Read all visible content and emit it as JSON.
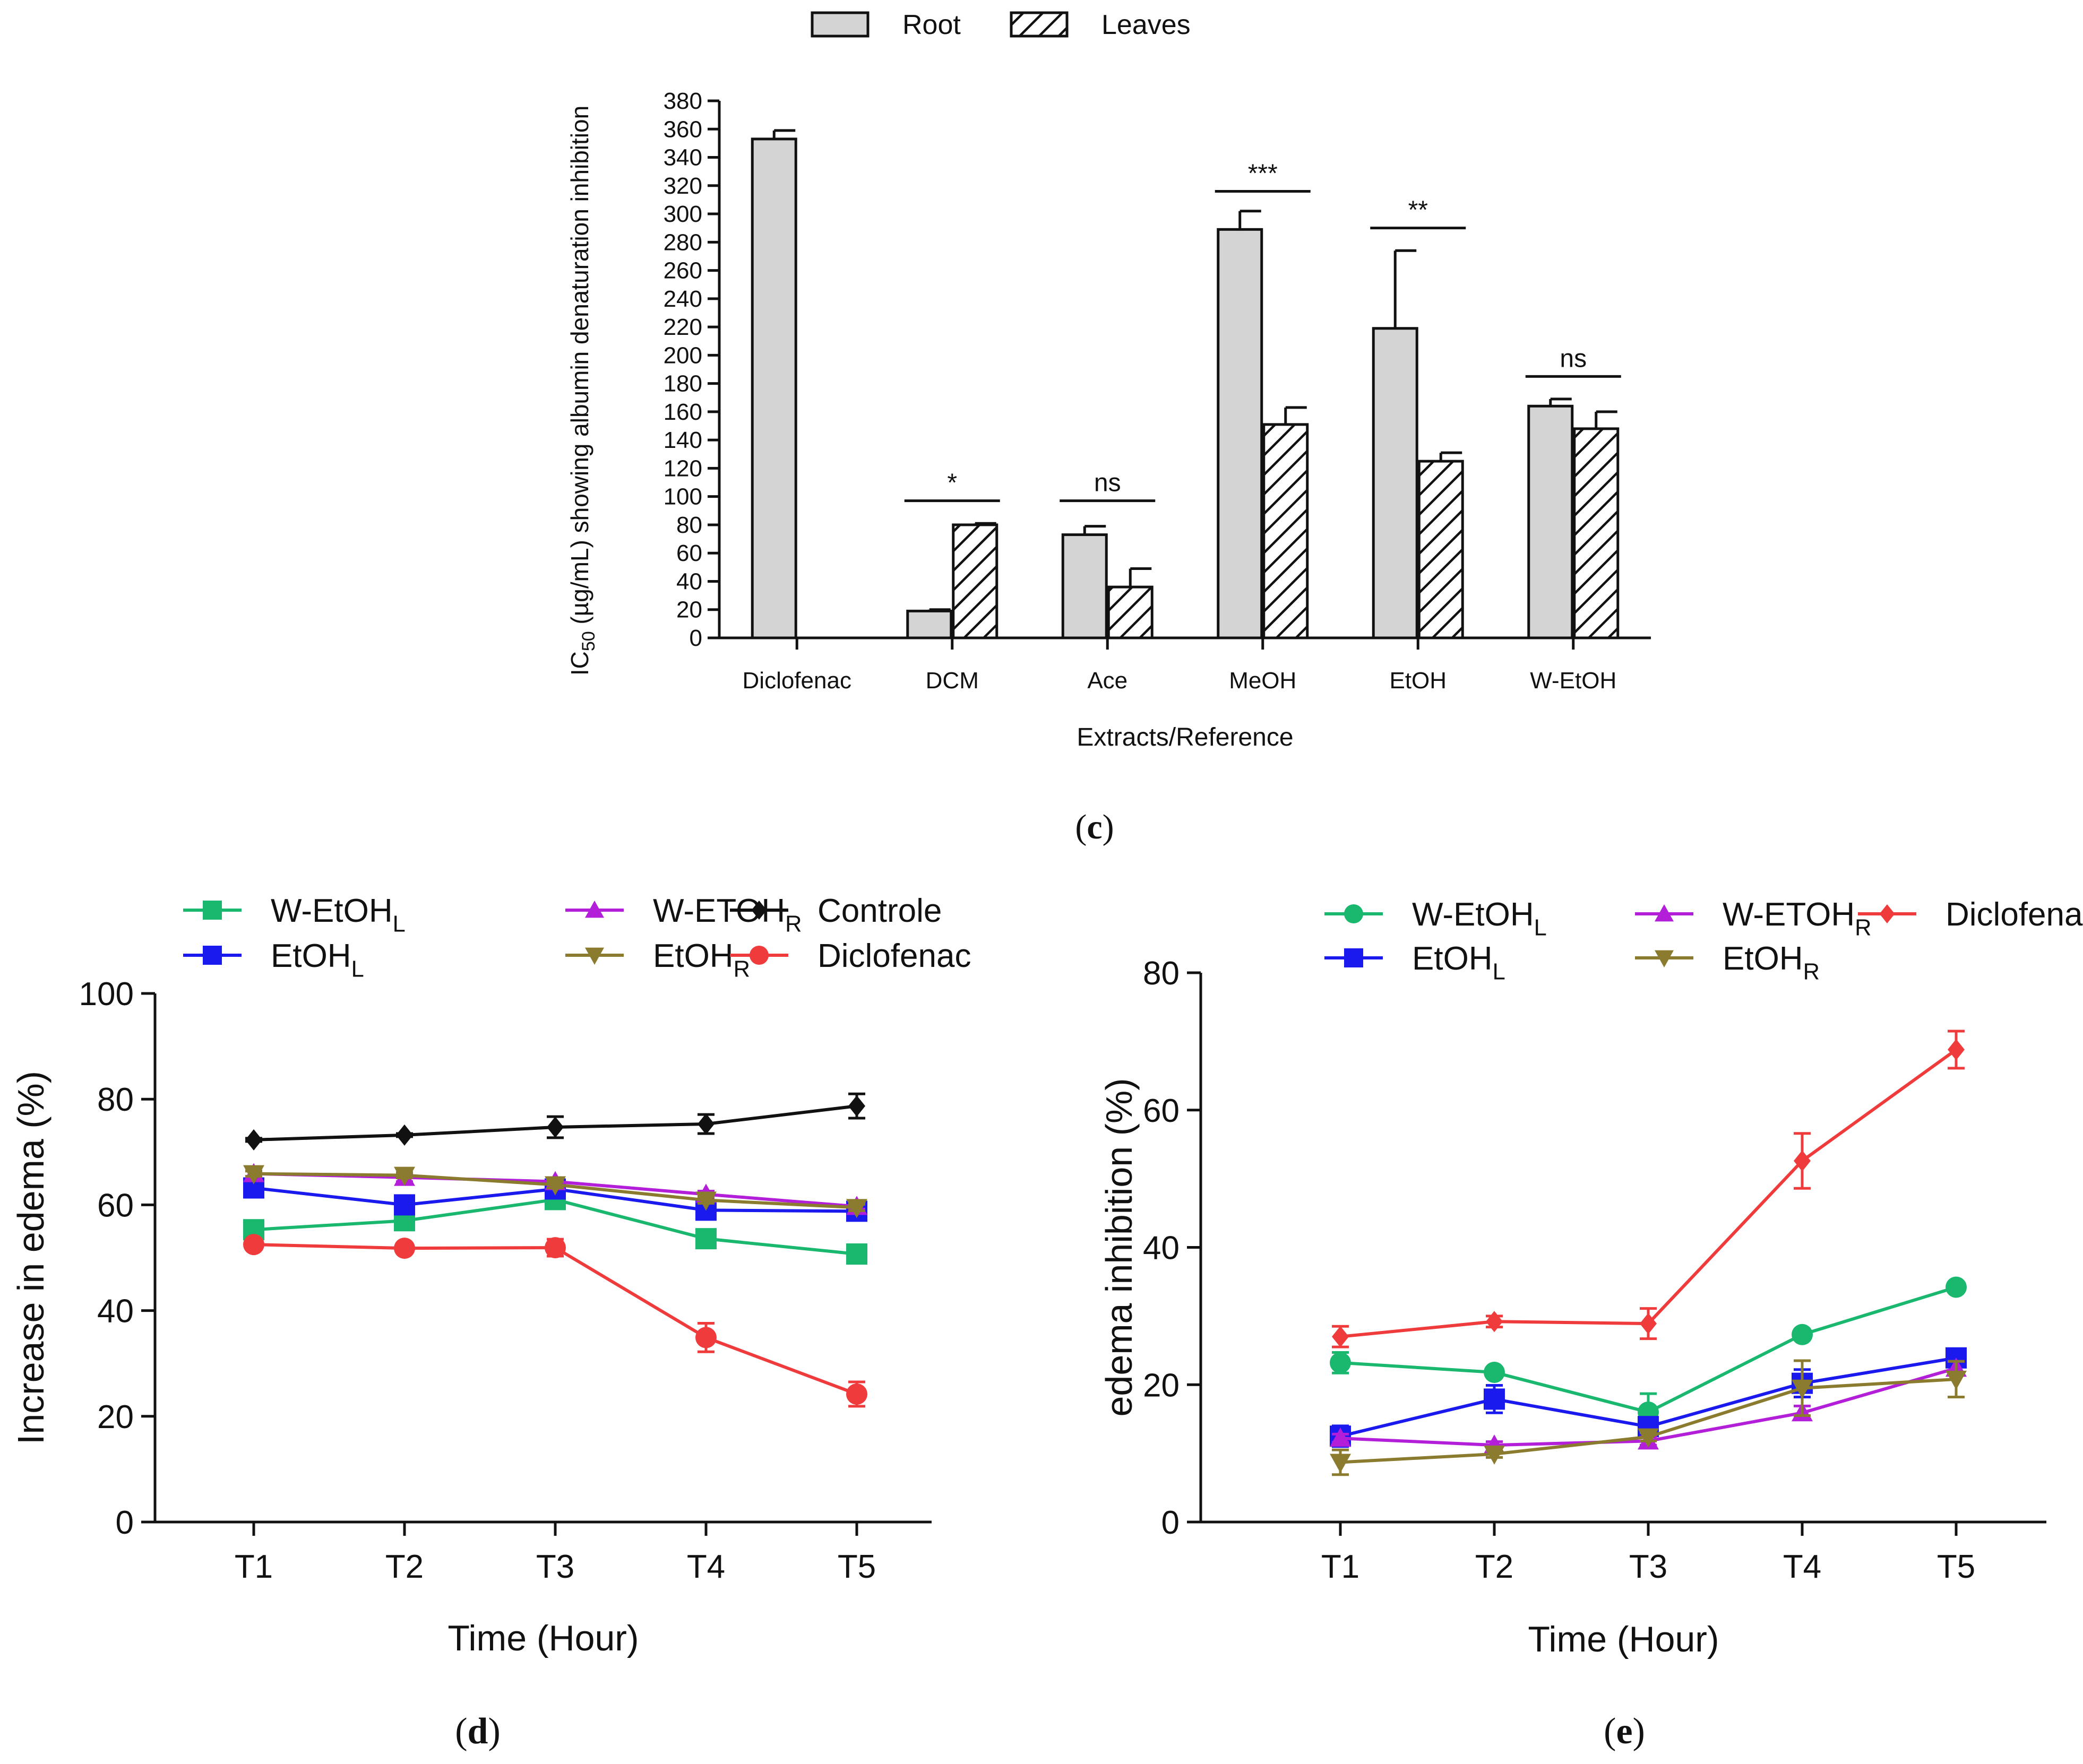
{
  "chart_data": [
    {
      "id": "c",
      "type": "bar",
      "caption_letter": "c",
      "title": "",
      "ylabel_main": "IC",
      "ylabel_sub": "50",
      "ylabel_rest": " (µg/mL) showing albumin denaturation inhibition",
      "xlabel": "Extracts/Reference",
      "categories": [
        "Diclofenac",
        "DCM",
        "Ace",
        "MeOH",
        "EtOH",
        "W-EtOH"
      ],
      "ylim": [
        0,
        380
      ],
      "yticks": [
        0,
        20,
        40,
        60,
        80,
        100,
        120,
        140,
        160,
        180,
        200,
        220,
        240,
        260,
        280,
        300,
        320,
        340,
        360,
        380
      ],
      "legend": [
        "Root",
        "Leaves"
      ],
      "legend_position": "top-center",
      "series": [
        {
          "name": "Root",
          "pattern": "solid-gray",
          "color": "#d4d4d4",
          "values": [
            353,
            19,
            73,
            289,
            219,
            164
          ],
          "errors": [
            6,
            1,
            6,
            13,
            55,
            5
          ]
        },
        {
          "name": "Leaves",
          "pattern": "hatched",
          "color": "#ffffff",
          "values": [
            null,
            80,
            36,
            151,
            125,
            148
          ],
          "errors": [
            null,
            1,
            13,
            12,
            6,
            12
          ]
        }
      ],
      "significance": [
        {
          "category": "DCM",
          "label": "*",
          "y": 97
        },
        {
          "category": "Ace",
          "label": "ns",
          "y": 97
        },
        {
          "category": "MeOH",
          "label": "***",
          "y": 316
        },
        {
          "category": "EtOH",
          "label": "**",
          "y": 290
        },
        {
          "category": "W-EtOH",
          "label": "ns",
          "y": 185
        }
      ]
    },
    {
      "id": "d",
      "type": "line",
      "caption_letter": "d",
      "xlabel": "Time (Hour)",
      "ylabel": "Increase in edema (%)",
      "categories": [
        "T1",
        "T2",
        "T3",
        "T4",
        "T5"
      ],
      "ylim": [
        0,
        100
      ],
      "yticks": [
        0,
        20,
        40,
        60,
        80,
        100
      ],
      "legend_position": "top",
      "series": [
        {
          "name": "W-EtOH",
          "sub": "L",
          "color": "#19b86e",
          "marker": "square-open",
          "values": [
            55.3,
            57,
            61,
            53.6,
            50.7
          ],
          "errors": [
            0.8,
            0.8,
            1,
            0.8,
            0.6
          ]
        },
        {
          "name": "EtOH",
          "sub": "L",
          "color": "#1a1aee",
          "marker": "square",
          "values": [
            63.2,
            60,
            63,
            59,
            58.8
          ],
          "errors": [
            0.6,
            0.6,
            0.6,
            0.8,
            0.6
          ]
        },
        {
          "name": "W-ETOH",
          "sub": "R",
          "color": "#b31ed8",
          "marker": "triangle",
          "values": [
            65.9,
            65.2,
            64.4,
            62,
            59.7
          ],
          "errors": [
            0.5,
            0.8,
            0.6,
            0.6,
            0.5
          ]
        },
        {
          "name": "EtOH",
          "sub": "R",
          "color": "#8a7b2e",
          "marker": "triangle-down",
          "values": [
            65.9,
            65.6,
            63.8,
            60.9,
            59.5
          ],
          "errors": [
            0.5,
            0.5,
            0.6,
            0.6,
            0.6
          ]
        },
        {
          "name": "Controle",
          "sub": "",
          "color": "#111111",
          "marker": "diamond",
          "values": [
            72.3,
            73.2,
            74.7,
            75.3,
            78.7
          ],
          "errors": [
            0.3,
            0.3,
            2,
            1.8,
            2.3
          ]
        },
        {
          "name": "Diclofenac",
          "sub": "",
          "color": "#ef3b3b",
          "marker": "circle",
          "values": [
            52.5,
            51.8,
            51.9,
            34.9,
            24.2
          ],
          "errors": [
            0.5,
            0.5,
            1.6,
            2.7,
            2.3
          ]
        }
      ]
    },
    {
      "id": "e",
      "type": "line",
      "caption_letter": "e",
      "xlabel": "Time (Hour)",
      "ylabel": "edema inhibition (%)",
      "categories": [
        "T1",
        "T2",
        "T3",
        "T4",
        "T5"
      ],
      "ylim": [
        0,
        80
      ],
      "yticks": [
        0,
        20,
        40,
        60,
        80
      ],
      "legend_position": "top",
      "series": [
        {
          "name": "W-EtOH",
          "sub": "L",
          "color": "#19b86e",
          "marker": "circle",
          "values": [
            23.2,
            21.8,
            16,
            27.3,
            34.2
          ],
          "errors": [
            1.5,
            0.5,
            2.7,
            0.4,
            0.4
          ]
        },
        {
          "name": "EtOH",
          "sub": "L",
          "color": "#1a1aee",
          "marker": "square",
          "values": [
            12.5,
            17.9,
            13.9,
            20.2,
            23.9
          ],
          "errors": [
            1.5,
            2,
            0.7,
            2,
            0.4
          ]
        },
        {
          "name": "W-ETOH",
          "sub": "R",
          "color": "#b31ed8",
          "marker": "triangle",
          "values": [
            12.2,
            11.2,
            11.8,
            15.9,
            22.4
          ],
          "errors": [
            0.6,
            0.5,
            0.6,
            1,
            1
          ]
        },
        {
          "name": "EtOH",
          "sub": "R",
          "color": "#8a7b2e",
          "marker": "triangle-down",
          "values": [
            8.7,
            9.9,
            12.4,
            19.5,
            20.8
          ],
          "errors": [
            1.8,
            0.5,
            0.6,
            4,
            2.6
          ]
        },
        {
          "name": "Diclofenac",
          "sub": "",
          "color": "#ef3b3b",
          "marker": "diamond",
          "values": [
            27,
            29.2,
            28.9,
            52.6,
            68.8
          ],
          "errors": [
            1.5,
            0.8,
            2.2,
            4,
            2.7
          ]
        }
      ]
    }
  ]
}
